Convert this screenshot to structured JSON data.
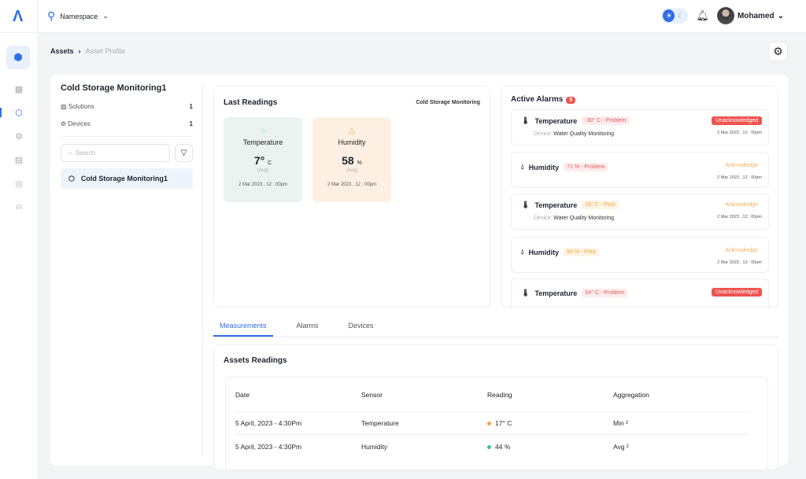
{
  "topbar": {
    "logo": "Λ",
    "namespace_label": "Namespace",
    "user_name": "Mohamed"
  },
  "breadcrumb": {
    "root": "Assets",
    "separator": "›",
    "current": "Asset Profile"
  },
  "asset_panel": {
    "title": "Cold Storage Monitoring1",
    "solutions_label": "Solutions",
    "solutions_count": "1",
    "devices_label": "Devices",
    "devices_count": "1",
    "search_placeholder": "Search",
    "items": [
      {
        "label": "Cold Storage Monitoring1"
      }
    ]
  },
  "last_readings": {
    "title": "Last Readings",
    "subtitle": "Cold Storage Monitoring",
    "tiles": [
      {
        "name": "Temperature",
        "value": "7°",
        "unit": "C",
        "avg": "(Avg)",
        "time": "2 Mar 2023 , 12 : 00pm",
        "color": "#eaf3ef"
      },
      {
        "name": "Humidity",
        "value": "58",
        "unit": "%",
        "avg": "(Avg)",
        "time": "2 Mar 2023 , 12 : 00pm",
        "color": "#fdf0e3"
      }
    ]
  },
  "active_alarms": {
    "title": "Active Alarms",
    "count": "5",
    "device_label": "Device:",
    "items": [
      {
        "sensor": "Temperature",
        "tag": "-30° C - Problem",
        "severity": "red",
        "device": "Water Quality Monitoring",
        "status": "Unacknowledged",
        "time": "2 Mar 2023 , 12 : 00pm"
      },
      {
        "sensor": "Humidity",
        "tag": "71 % - Problem",
        "severity": "red",
        "device": "",
        "status": "Acknowledge",
        "time": "2 Mar 2023 , 12 : 00pm"
      },
      {
        "sensor": "Temperature",
        "tag": "16° C - Poor",
        "severity": "orange",
        "device": "Water Quality Monitoring",
        "status": "Acknowledge",
        "time": "2 Mar 2023 , 12 : 00pm"
      },
      {
        "sensor": "Humidity",
        "tag": "56 % - Poor",
        "severity": "orange",
        "device": "",
        "status": "Acknowledge",
        "time": "2 Mar 2023 , 12 : 00pm"
      },
      {
        "sensor": "Temperature",
        "tag": "54° C - Problem",
        "severity": "red",
        "device": "",
        "status": "Unacknowledged",
        "time": ""
      }
    ]
  },
  "tabs": [
    "Measurements",
    "Alarms",
    "Devices"
  ],
  "assets_readings": {
    "title": "Assets Readings",
    "columns": [
      "Date",
      "Sensor",
      "Reading",
      "Aggregation"
    ],
    "rows": [
      {
        "date": "5 April, 2023 - 4:30Pm",
        "sensor": "Temperature",
        "reading": "17° C",
        "dot": "#f5a23a",
        "aggregation": "Min ²"
      },
      {
        "date": "5 April, 2023 - 4:30Pm",
        "sensor": "Humidity",
        "reading": "44 %",
        "dot": "#3fbf8f",
        "aggregation": "Avg ²"
      }
    ]
  },
  "colors": {
    "accent": "#2f6fe4",
    "danger": "#ef5350",
    "warning": "#f0a347"
  }
}
